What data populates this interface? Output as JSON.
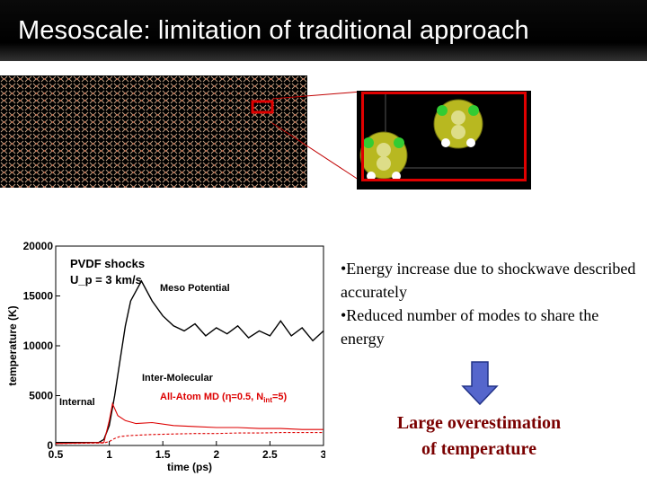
{
  "slide": {
    "title": "Mesoscale: limitation of traditional approach"
  },
  "bullets": [
    "•Energy increase due to shockwave described accurately",
    "•Reduced number of modes to share the energy"
  ],
  "conclusion": {
    "line1": "Large overestimation",
    "line2": "of temperature"
  },
  "colors": {
    "title_bg": "#000000",
    "zoom_border": "#e00000",
    "molecule": "#b8b820",
    "arrow_fill": "#5566cc",
    "conclusion_text": "#7a0000"
  },
  "chart_data": {
    "type": "line",
    "title": "PVDF shocks",
    "subtitle": "U_p = 3 km/s",
    "xlabel": "time (ps)",
    "ylabel": "temperature (K)",
    "xlim": [
      0.5,
      3
    ],
    "ylim": [
      0,
      20000
    ],
    "xticks": [
      "0.5",
      "1",
      "1.5",
      "2",
      "2.5",
      "3"
    ],
    "yticks": [
      "0",
      "5000",
      "10000",
      "15000",
      "20000"
    ],
    "annotations": [
      "Meso Potential",
      "Inter-Molecular",
      "Internal",
      "All-Atom MD (η=0.5, N",
      "int",
      "=5)"
    ],
    "series": [
      {
        "name": "Meso Potential",
        "color": "#000000",
        "x": [
          0.5,
          0.9,
          0.95,
          1.0,
          1.05,
          1.1,
          1.15,
          1.2,
          1.25,
          1.3,
          1.4,
          1.5,
          1.6,
          1.7,
          1.8,
          1.9,
          2.0,
          2.1,
          2.2,
          2.3,
          2.4,
          2.5,
          2.6,
          2.7,
          2.8,
          2.9,
          3.0
        ],
        "y": [
          300,
          300,
          600,
          2000,
          5000,
          8500,
          12000,
          14500,
          15500,
          16500,
          14500,
          13000,
          12000,
          11500,
          12200,
          11000,
          11800,
          11200,
          12000,
          10800,
          11500,
          11000,
          12500,
          11000,
          11800,
          10500,
          11500
        ]
      },
      {
        "name": "Inter-Molecular",
        "color": "#dd0000",
        "x": [
          0.5,
          0.95,
          1.0,
          1.03,
          1.08,
          1.15,
          1.25,
          1.4,
          1.6,
          1.8,
          2.0,
          2.2,
          2.4,
          2.6,
          2.8,
          3.0
        ],
        "y": [
          200,
          300,
          2500,
          4200,
          3000,
          2500,
          2200,
          2300,
          2000,
          1900,
          1800,
          1800,
          1700,
          1700,
          1600,
          1600
        ]
      },
      {
        "name": "Internal",
        "color": "#dd0000",
        "x": [
          0.5,
          0.95,
          1.0,
          1.05,
          1.1,
          1.2,
          1.4,
          1.6,
          1.8,
          2.0,
          2.2,
          2.4,
          2.6,
          2.8,
          3.0
        ],
        "y": [
          200,
          250,
          400,
          700,
          900,
          1000,
          1100,
          1150,
          1200,
          1200,
          1250,
          1250,
          1300,
          1300,
          1300
        ]
      }
    ]
  }
}
